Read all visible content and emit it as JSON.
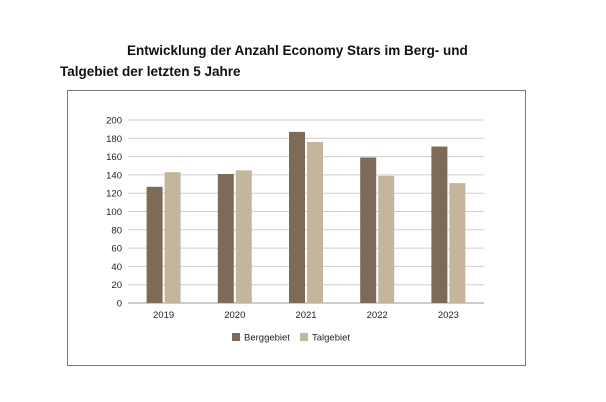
{
  "title_line1": "Entwicklung der Anzahl Economy Stars im Berg- und",
  "title_line2": "Talgebiet der letzten 5 Jahre",
  "chart_data": {
    "type": "bar",
    "title": "Entwicklung der Anzahl Economy Stars im Berg- und Talgebiet der letzten 5 Jahre",
    "categories": [
      "2019",
      "2020",
      "2021",
      "2022",
      "2023"
    ],
    "series": [
      {
        "name": "Berggebiet",
        "values": [
          127,
          141,
          187,
          159,
          171
        ],
        "color": "#7d6b58"
      },
      {
        "name": "Talgebiet",
        "values": [
          143,
          145,
          176,
          139,
          131
        ],
        "color": "#c4b59d"
      }
    ],
    "xlabel": "",
    "ylabel": "",
    "ylim": [
      0,
      200
    ],
    "yticks": [
      0,
      20,
      40,
      60,
      80,
      100,
      120,
      140,
      160,
      180,
      200
    ],
    "grid": true,
    "legend": "bottom"
  }
}
